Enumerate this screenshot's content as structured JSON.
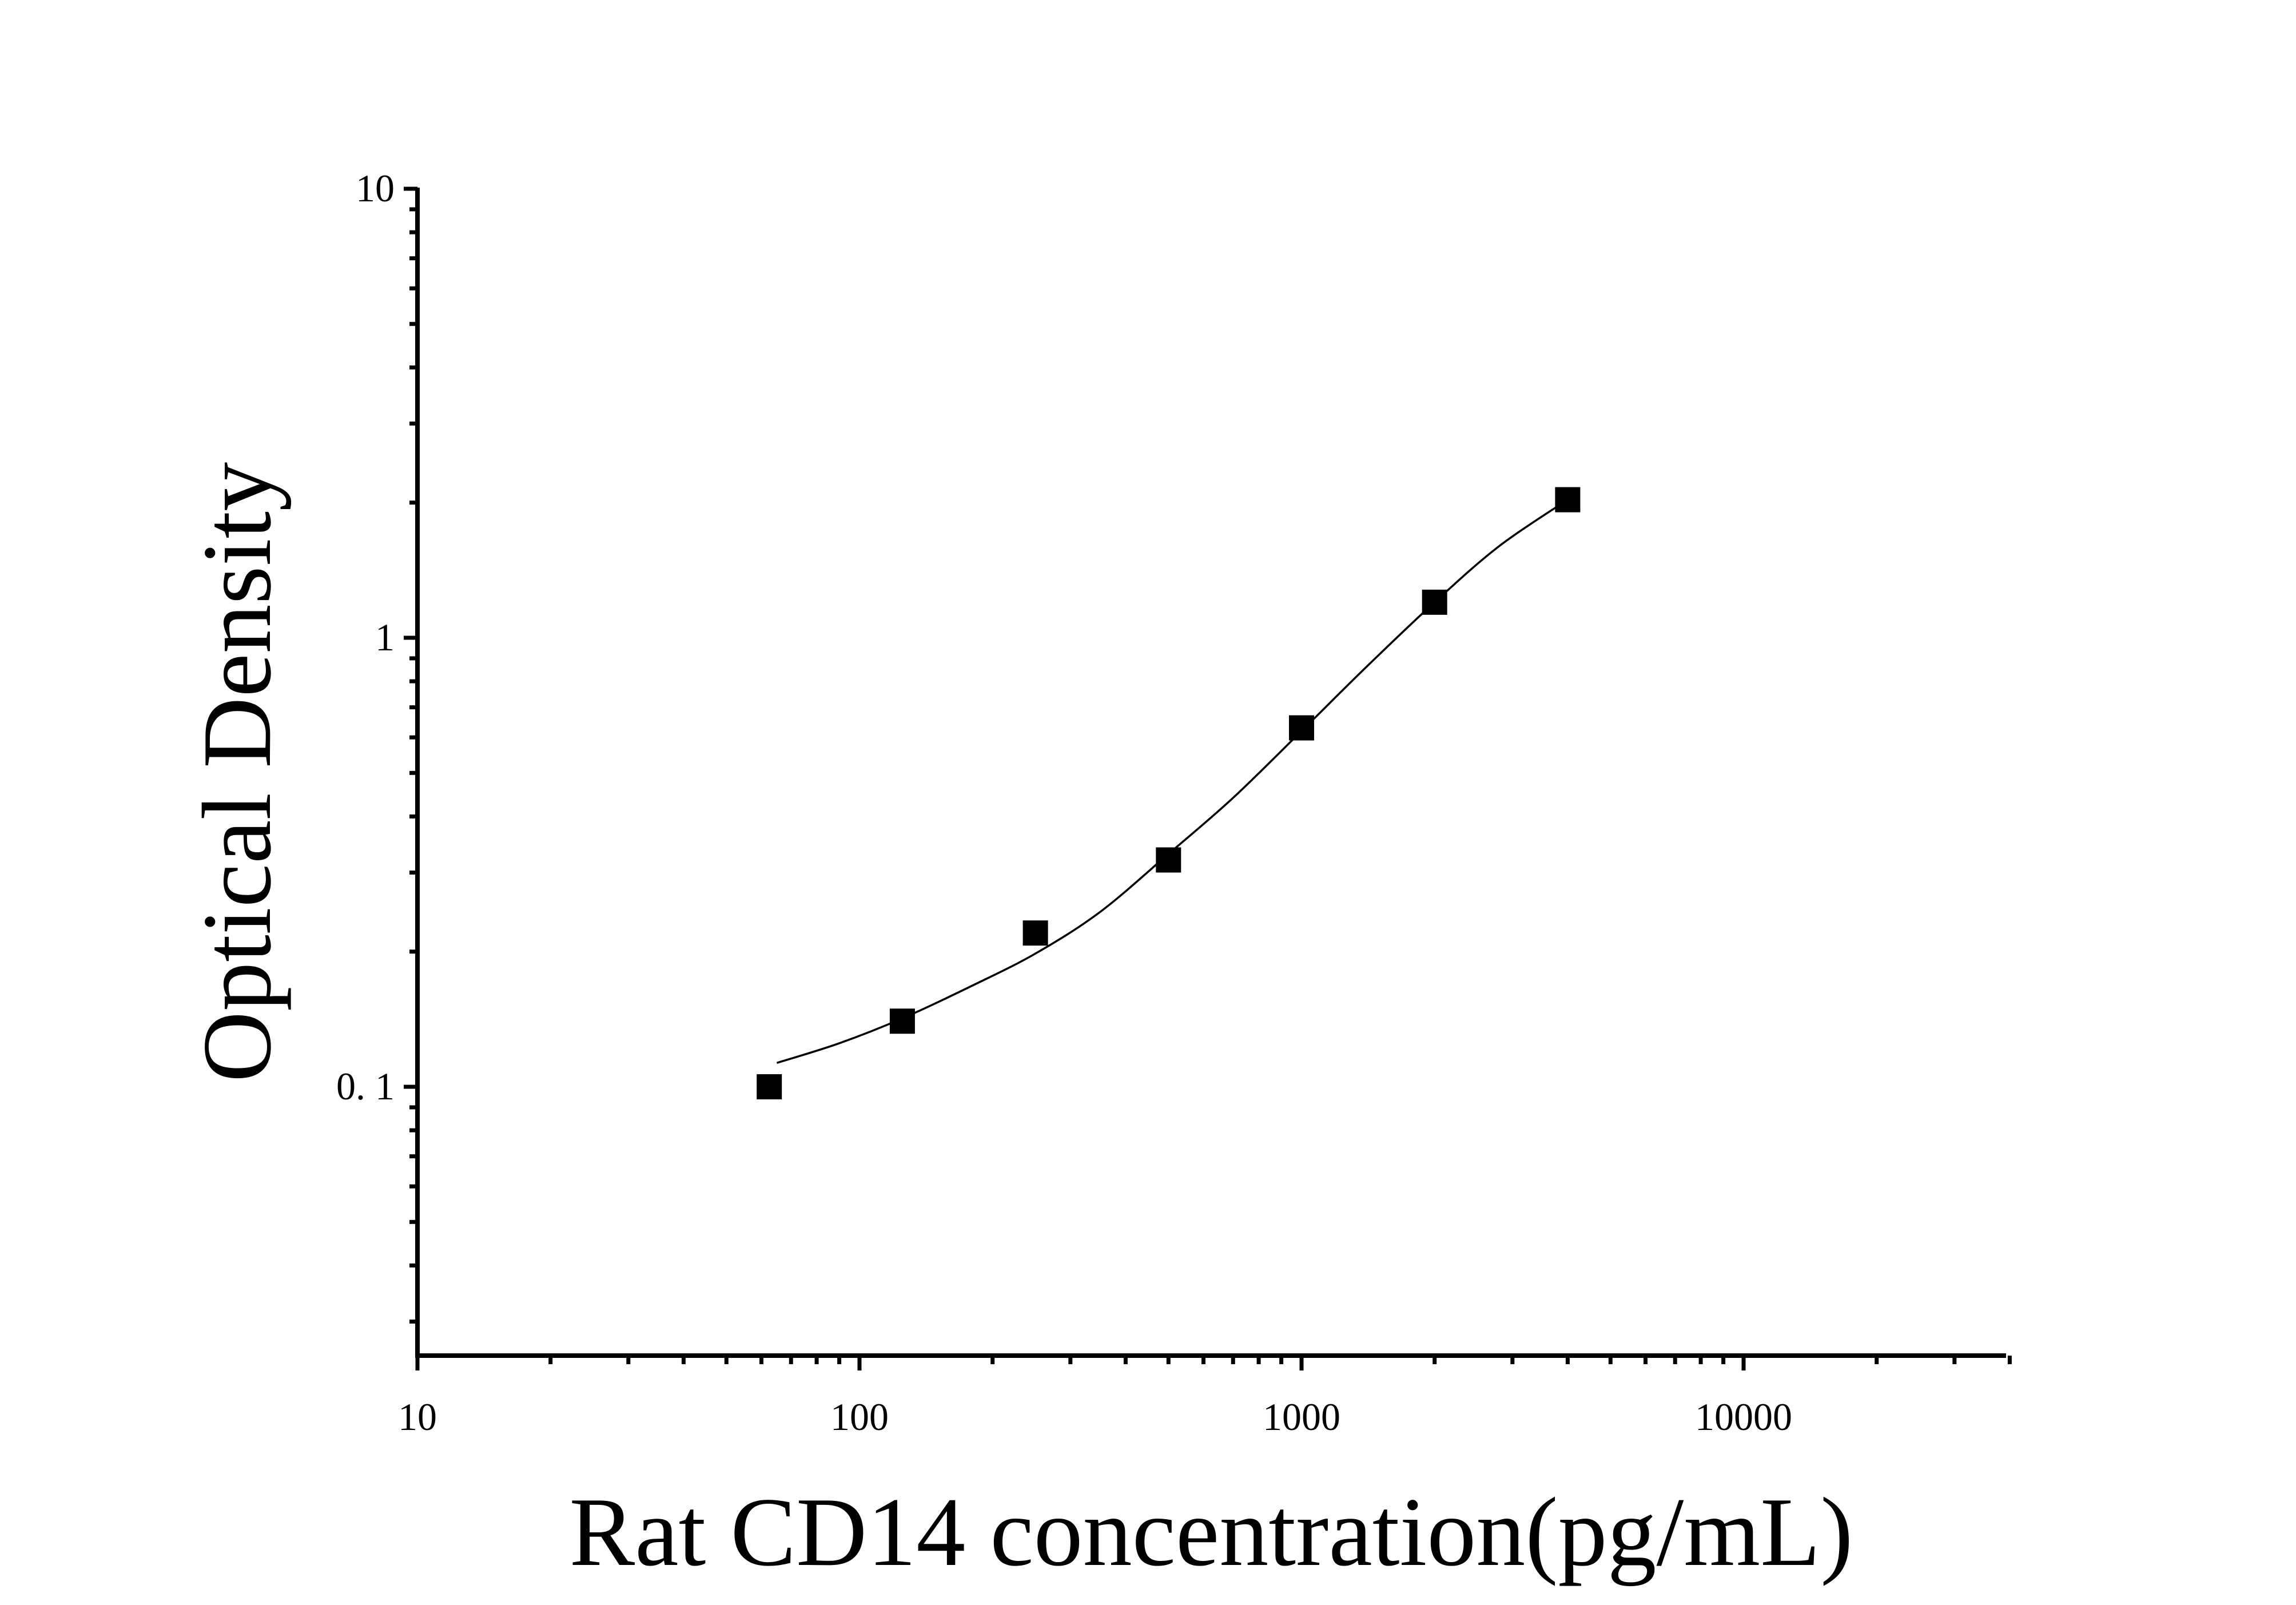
{
  "chart_data": {
    "type": "scatter",
    "title": "",
    "xlabel": "Rat CD14 concentration(pg/mL)",
    "ylabel": "Optical Density",
    "xscale": "log",
    "yscale": "log",
    "xlim": [
      10,
      40000
    ],
    "ylim": [
      0.025,
      10
    ],
    "xtick_labels": [
      "10",
      "100",
      "1000",
      "10000"
    ],
    "xtick_values": [
      10,
      100,
      1000,
      10000
    ],
    "ytick_labels": [
      "0. 1",
      "1",
      "10"
    ],
    "ytick_values": [
      0.1,
      1,
      10
    ],
    "grid": false,
    "legend": "none",
    "series": [
      {
        "x": [
          62.5,
          125,
          250,
          500,
          1000,
          2000,
          4000
        ],
        "y": [
          0.1,
          0.14,
          0.22,
          0.32,
          0.63,
          1.2,
          2.03
        ],
        "marker": "square",
        "color": "#000000",
        "fit_curve": {
          "x": [
            65,
            90,
            125,
            180,
            250,
            350,
            500,
            700,
            1000,
            1400,
            2000,
            2800,
            4000
          ],
          "y": [
            0.113,
            0.125,
            0.142,
            0.168,
            0.198,
            0.245,
            0.33,
            0.44,
            0.62,
            0.86,
            1.2,
            1.6,
            2.03
          ]
        }
      }
    ]
  }
}
